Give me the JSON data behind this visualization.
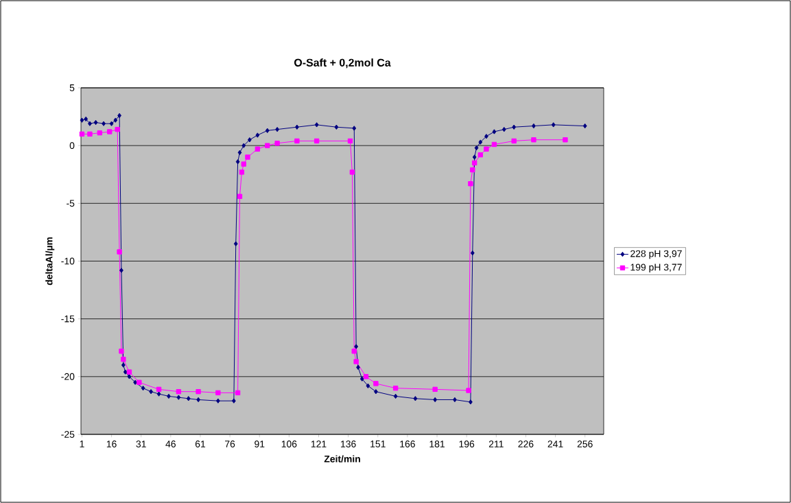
{
  "chart_data": {
    "type": "line",
    "title": "O-Saft + 0,2mol Ca",
    "xlabel": "Zeit/min",
    "ylabel": "deltaAl/µm",
    "xlim": [
      0.5,
      265.5
    ],
    "xticks": [
      1,
      16,
      31,
      46,
      61,
      76,
      91,
      106,
      121,
      136,
      151,
      166,
      181,
      196,
      211,
      226,
      241,
      256
    ],
    "ylim": [
      -25,
      5
    ],
    "yticks": [
      -25,
      -20,
      -15,
      -10,
      -5,
      0,
      5
    ],
    "grid": "y",
    "legend": "right",
    "line_style": "solid",
    "series": [
      {
        "name": "228 pH 3,97",
        "color": "#000080",
        "marker": "diamond",
        "x": [
          1,
          3,
          5,
          8,
          12,
          16,
          18,
          20,
          21,
          22,
          23,
          25,
          28,
          32,
          36,
          40,
          45,
          50,
          55,
          60,
          70,
          78,
          79,
          80,
          81,
          83,
          86,
          90,
          95,
          100,
          110,
          120,
          130,
          139,
          140,
          141,
          143,
          146,
          150,
          160,
          170,
          180,
          190,
          198,
          199,
          200,
          201,
          203,
          206,
          210,
          215,
          220,
          230,
          240,
          256
        ],
        "values": [
          2.2,
          2.3,
          1.9,
          2.0,
          1.9,
          1.9,
          2.2,
          2.6,
          -10.8,
          -19.0,
          -19.6,
          -20.0,
          -20.5,
          -21.0,
          -21.3,
          -21.5,
          -21.7,
          -21.8,
          -21.9,
          -22.0,
          -22.1,
          -22.1,
          -8.5,
          -1.4,
          -0.6,
          0.0,
          0.5,
          0.9,
          1.3,
          1.4,
          1.6,
          1.8,
          1.6,
          1.5,
          -17.4,
          -19.2,
          -20.2,
          -20.8,
          -21.3,
          -21.7,
          -21.9,
          -22.0,
          -22.0,
          -22.2,
          -9.3,
          -1.0,
          -0.2,
          0.3,
          0.8,
          1.2,
          1.4,
          1.6,
          1.7,
          1.8,
          1.7
        ]
      },
      {
        "name": "199 pH 3,77",
        "color": "#ff00ff",
        "marker": "square",
        "x": [
          1,
          5,
          10,
          15,
          19,
          20,
          21,
          22,
          25,
          30,
          40,
          50,
          60,
          70,
          80,
          81,
          82,
          83,
          85,
          90,
          95,
          100,
          110,
          120,
          137,
          138,
          139,
          140,
          145,
          150,
          160,
          180,
          197,
          198,
          199,
          200,
          203,
          206,
          210,
          220,
          230,
          246
        ],
        "values": [
          1.0,
          1.0,
          1.1,
          1.2,
          1.4,
          -9.2,
          -17.8,
          -18.5,
          -19.6,
          -20.5,
          -21.1,
          -21.3,
          -21.3,
          -21.4,
          -21.4,
          -4.4,
          -2.3,
          -1.6,
          -1.0,
          -0.3,
          0.0,
          0.2,
          0.4,
          0.4,
          0.4,
          -2.3,
          -17.8,
          -18.7,
          -20.0,
          -20.6,
          -21.0,
          -21.1,
          -21.2,
          -3.3,
          -2.1,
          -1.5,
          -0.8,
          -0.3,
          0.1,
          0.4,
          0.5,
          0.5
        ]
      }
    ]
  }
}
